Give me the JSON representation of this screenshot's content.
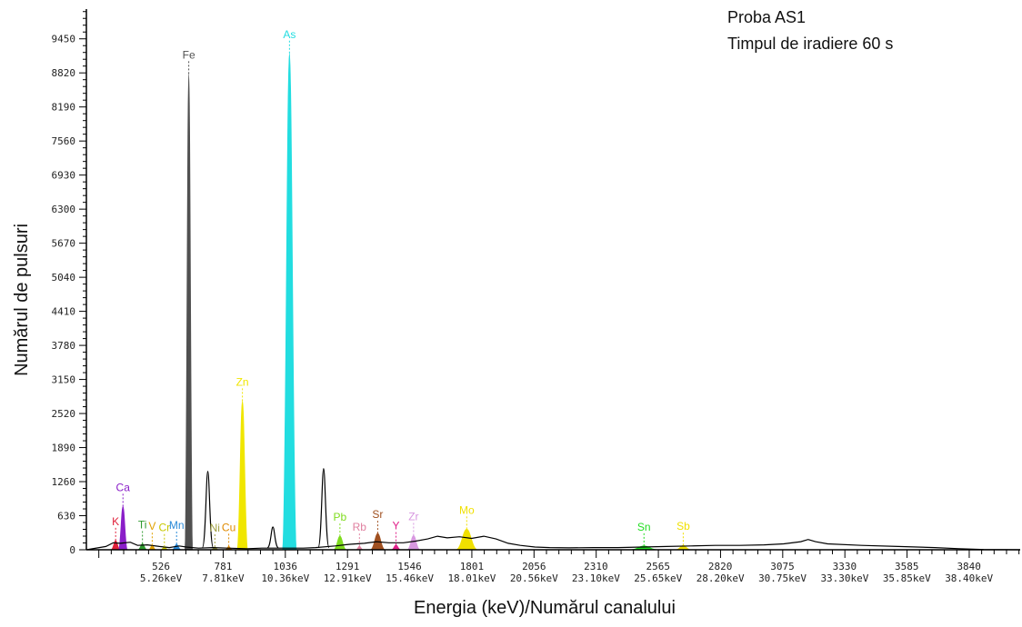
{
  "chart_data": {
    "type": "line",
    "ylabel": "Numărul de pulsuri",
    "xlabel": "Energia (keV)/Numărul canalului",
    "annotations": [
      "Proba AS1",
      "Timpul de iradiere 60 s"
    ],
    "ylim": [
      0,
      10000
    ],
    "xlim": [
      220,
      4050
    ],
    "y_ticks": [
      "0",
      "630",
      "1260",
      "1890",
      "2520",
      "3150",
      "3780",
      "4410",
      "5040",
      "5670",
      "6300",
      "6930",
      "7560",
      "8190",
      "8820",
      "9450"
    ],
    "x_ticks": [
      {
        "x": 526,
        "channel": "526",
        "energy": "5.26keV"
      },
      {
        "x": 781,
        "channel": "781",
        "energy": "7.81keV"
      },
      {
        "x": 1036,
        "channel": "1036",
        "energy": "10.36keV"
      },
      {
        "x": 1291,
        "channel": "1291",
        "energy": "12.91keV"
      },
      {
        "x": 1546,
        "channel": "1546",
        "energy": "15.46keV"
      },
      {
        "x": 1801,
        "channel": "1801",
        "energy": "18.01keV"
      },
      {
        "x": 2056,
        "channel": "2056",
        "energy": "20.56keV"
      },
      {
        "x": 2310,
        "channel": "2310",
        "energy": "23.10keV"
      },
      {
        "x": 2565,
        "channel": "2565",
        "energy": "25.65keV"
      },
      {
        "x": 2820,
        "channel": "2820",
        "energy": "28.20keV"
      },
      {
        "x": 3075,
        "channel": "3075",
        "energy": "30.75keV"
      },
      {
        "x": 3330,
        "channel": "3330",
        "energy": "33.30keV"
      },
      {
        "x": 3585,
        "channel": "3585",
        "energy": "35.85keV"
      },
      {
        "x": 3840,
        "channel": "3840",
        "energy": "38.40keV"
      }
    ],
    "elements": [
      {
        "label": "K",
        "channel": 340,
        "counts": 170,
        "color": "#e0203a",
        "width": 10
      },
      {
        "label": "Ca",
        "channel": 370,
        "counts": 800,
        "color": "#8a1ec8",
        "width": 10
      },
      {
        "label": "Ti",
        "channel": 450,
        "counts": 110,
        "color": "#2f9a2f",
        "width": 10
      },
      {
        "label": "V",
        "channel": 490,
        "counts": 80,
        "color": "#e0a000",
        "width": 8
      },
      {
        "label": "Cr",
        "channel": 540,
        "counts": 55,
        "color": "#c8c800",
        "width": 8
      },
      {
        "label": "Mn",
        "channel": 590,
        "counts": 100,
        "color": "#2a8ad8",
        "width": 10
      },
      {
        "label": "Fe",
        "channel": 640,
        "counts": 8800,
        "color": "#505050",
        "width": 9
      },
      {
        "label": "Ni",
        "channel": 747,
        "counts": 50,
        "color": "#a0a040",
        "width": 8
      },
      {
        "label": "Cu",
        "channel": 804,
        "counts": 60,
        "color": "#e08a00",
        "width": 8
      },
      {
        "label": "Zn",
        "channel": 860,
        "counts": 2750,
        "color": "#f0e600",
        "width": 12
      },
      {
        "label": "As",
        "channel": 1053,
        "counts": 9180,
        "color": "#22dde0",
        "width": 16
      },
      {
        "label": "Pb",
        "channel": 1260,
        "counts": 250,
        "color": "#7fdc1e",
        "width": 14
      },
      {
        "label": "Rb",
        "channel": 1340,
        "counts": 65,
        "color": "#e080a0",
        "width": 8
      },
      {
        "label": "Sr",
        "channel": 1415,
        "counts": 300,
        "color": "#a05020",
        "width": 16
      },
      {
        "label": "Y",
        "channel": 1490,
        "counts": 90,
        "color": "#e0208a",
        "width": 10
      },
      {
        "label": "Zr",
        "channel": 1562,
        "counts": 260,
        "color": "#d898e0",
        "width": 14
      },
      {
        "label": "Mo",
        "channel": 1780,
        "counts": 380,
        "color": "#f0e000",
        "width": 24
      },
      {
        "label": "Sn",
        "channel": 2507,
        "counts": 70,
        "color": "#22dd22",
        "width": 30
      },
      {
        "label": "Sb",
        "channel": 2668,
        "counts": 80,
        "color": "#f0e000",
        "width": 16
      }
    ],
    "unlabeled_peaks": [
      {
        "channel": 718,
        "counts": 1450
      },
      {
        "channel": 985,
        "counts": 420
      },
      {
        "channel": 1193,
        "counts": 1500
      }
    ],
    "spectrum_outline": [
      [
        220,
        0
      ],
      [
        300,
        60
      ],
      [
        330,
        130
      ],
      [
        360,
        120
      ],
      [
        400,
        140
      ],
      [
        430,
        80
      ],
      [
        470,
        90
      ],
      [
        520,
        60
      ],
      [
        560,
        40
      ],
      [
        600,
        70
      ],
      [
        630,
        50
      ],
      [
        680,
        30
      ],
      [
        740,
        40
      ],
      [
        800,
        30
      ],
      [
        880,
        20
      ],
      [
        940,
        30
      ],
      [
        1010,
        30
      ],
      [
        1110,
        30
      ],
      [
        1160,
        40
      ],
      [
        1240,
        70
      ],
      [
        1300,
        100
      ],
      [
        1360,
        120
      ],
      [
        1410,
        150
      ],
      [
        1460,
        130
      ],
      [
        1520,
        130
      ],
      [
        1570,
        160
      ],
      [
        1620,
        200
      ],
      [
        1660,
        250
      ],
      [
        1700,
        220
      ],
      [
        1750,
        240
      ],
      [
        1800,
        210
      ],
      [
        1850,
        250
      ],
      [
        1900,
        200
      ],
      [
        1950,
        120
      ],
      [
        2000,
        80
      ],
      [
        2060,
        50
      ],
      [
        2120,
        40
      ],
      [
        2200,
        35
      ],
      [
        2300,
        40
      ],
      [
        2400,
        40
      ],
      [
        2500,
        50
      ],
      [
        2600,
        60
      ],
      [
        2700,
        70
      ],
      [
        2800,
        80
      ],
      [
        2900,
        80
      ],
      [
        3000,
        90
      ],
      [
        3080,
        110
      ],
      [
        3150,
        150
      ],
      [
        3180,
        190
      ],
      [
        3210,
        150
      ],
      [
        3260,
        110
      ],
      [
        3400,
        80
      ],
      [
        3550,
        60
      ],
      [
        3700,
        40
      ],
      [
        3800,
        20
      ],
      [
        3900,
        5
      ],
      [
        4050,
        0
      ]
    ],
    "colors": {
      "line": "#000000",
      "axis": "#000000"
    }
  }
}
